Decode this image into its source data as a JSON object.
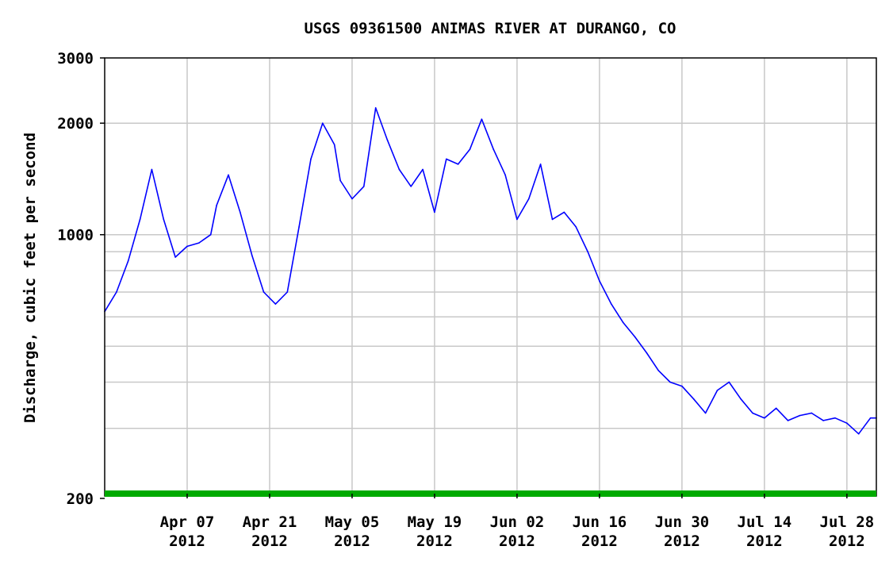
{
  "chart_data": {
    "type": "line",
    "title": "USGS 09361500 ANIMAS RIVER AT DURANGO, CO",
    "ylabel": "Discharge, cubic feet per second",
    "xlabel": "",
    "yscale": "log",
    "ylim": [
      200,
      3000
    ],
    "xlim": [
      "2012-03-24",
      "2012-08-02"
    ],
    "grid": true,
    "y_ticks_labeled": [
      {
        "value": 200,
        "label": "200"
      },
      {
        "value": 1000,
        "label": "1000"
      },
      {
        "value": 2000,
        "label": "2000"
      },
      {
        "value": 3000,
        "label": "3000"
      }
    ],
    "y_gridlines": [
      300,
      400,
      500,
      600,
      700,
      800,
      900,
      1000,
      2000
    ],
    "x_ticks": [
      {
        "date": "2012-04-07",
        "label": "Apr 07",
        "year": "2012"
      },
      {
        "date": "2012-04-21",
        "label": "Apr 21",
        "year": "2012"
      },
      {
        "date": "2012-05-05",
        "label": "May 05",
        "year": "2012"
      },
      {
        "date": "2012-05-19",
        "label": "May 19",
        "year": "2012"
      },
      {
        "date": "2012-06-02",
        "label": "Jun 02",
        "year": "2012"
      },
      {
        "date": "2012-06-16",
        "label": "Jun 16",
        "year": "2012"
      },
      {
        "date": "2012-06-30",
        "label": "Jun 30",
        "year": "2012"
      },
      {
        "date": "2012-07-14",
        "label": "Jul 14",
        "year": "2012"
      },
      {
        "date": "2012-07-28",
        "label": "Jul 28",
        "year": "2012"
      }
    ],
    "line_color": "#0000ff",
    "baseline_color": "#00aa00",
    "series": [
      {
        "name": "",
        "x": [
          "2012-03-24",
          "2012-03-26",
          "2012-03-28",
          "2012-03-30",
          "2012-04-01",
          "2012-04-03",
          "2012-04-05",
          "2012-04-07",
          "2012-04-09",
          "2012-04-11",
          "2012-04-12",
          "2012-04-14",
          "2012-04-16",
          "2012-04-18",
          "2012-04-20",
          "2012-04-22",
          "2012-04-24",
          "2012-04-26",
          "2012-04-28",
          "2012-04-30",
          "2012-05-02",
          "2012-05-03",
          "2012-05-05",
          "2012-05-07",
          "2012-05-09",
          "2012-05-11",
          "2012-05-13",
          "2012-05-15",
          "2012-05-17",
          "2012-05-19",
          "2012-05-21",
          "2012-05-23",
          "2012-05-25",
          "2012-05-27",
          "2012-05-29",
          "2012-05-31",
          "2012-06-02",
          "2012-06-04",
          "2012-06-06",
          "2012-06-08",
          "2012-06-10",
          "2012-06-12",
          "2012-06-14",
          "2012-06-16",
          "2012-06-18",
          "2012-06-20",
          "2012-06-22",
          "2012-06-24",
          "2012-06-26",
          "2012-06-28",
          "2012-06-30",
          "2012-07-02",
          "2012-07-04",
          "2012-07-06",
          "2012-07-08",
          "2012-07-10",
          "2012-07-12",
          "2012-07-14",
          "2012-07-16",
          "2012-07-18",
          "2012-07-20",
          "2012-07-22",
          "2012-07-24",
          "2012-07-26",
          "2012-07-28",
          "2012-07-30",
          "2012-08-01",
          "2012-08-02"
        ],
        "values": [
          620,
          700,
          850,
          1100,
          1500,
          1100,
          870,
          930,
          950,
          1000,
          1200,
          1450,
          1150,
          880,
          700,
          650,
          700,
          1050,
          1600,
          2000,
          1750,
          1400,
          1250,
          1350,
          2200,
          1800,
          1500,
          1350,
          1500,
          1150,
          1600,
          1550,
          1700,
          2050,
          1700,
          1450,
          1100,
          1250,
          1550,
          1100,
          1150,
          1050,
          900,
          750,
          650,
          580,
          530,
          480,
          430,
          400,
          390,
          360,
          330,
          380,
          400,
          360,
          330,
          320,
          340,
          315,
          325,
          330,
          315,
          320,
          310,
          290,
          320,
          320
        ]
      }
    ]
  }
}
